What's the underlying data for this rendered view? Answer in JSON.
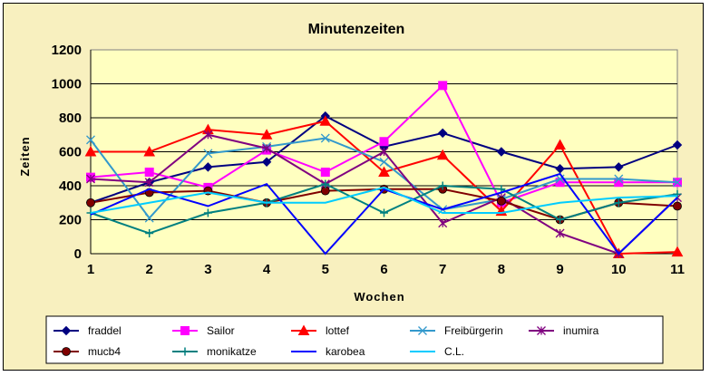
{
  "chart_data": {
    "type": "line",
    "title": "Minutenzeiten",
    "xlabel": "Wochen",
    "ylabel": "Zeiten",
    "categories": [
      "1",
      "2",
      "3",
      "4",
      "5",
      "6",
      "7",
      "8",
      "9",
      "10",
      "11"
    ],
    "ylim": [
      0,
      1200
    ],
    "yticks": [
      "0",
      "200",
      "400",
      "600",
      "800",
      "1000",
      "1200"
    ],
    "grid": "horizontal",
    "legend_position": "bottom",
    "plot_background": "#ffffc0",
    "series": [
      {
        "name": "fraddel",
        "color": "#000080",
        "marker": "diamond",
        "values": [
          300,
          420,
          510,
          540,
          810,
          630,
          710,
          600,
          500,
          510,
          640
        ]
      },
      {
        "name": "Sailor",
        "color": "#ff00ff",
        "marker": "square",
        "values": [
          450,
          480,
          390,
          610,
          480,
          660,
          990,
          300,
          420,
          420,
          420
        ]
      },
      {
        "name": "lottef",
        "color": "#ff0000",
        "marker": "triangle",
        "values": [
          600,
          600,
          730,
          700,
          780,
          480,
          580,
          250,
          640,
          0,
          10
        ]
      },
      {
        "name": "Freibürgerin",
        "color": "#3399cc",
        "marker": "x",
        "values": [
          670,
          210,
          590,
          630,
          680,
          540,
          260,
          320,
          440,
          440,
          420
        ]
      },
      {
        "name": "inumira",
        "color": "#800080",
        "marker": "star",
        "values": [
          440,
          420,
          700,
          620,
          410,
          600,
          180,
          330,
          120,
          0,
          330
        ]
      },
      {
        "name": "mucb4",
        "color": "#800000",
        "marker": "circle",
        "values": [
          300,
          360,
          370,
          300,
          370,
          380,
          380,
          310,
          200,
          300,
          280
        ]
      },
      {
        "name": "monikatze",
        "color": "#008080",
        "marker": "plus",
        "values": [
          240,
          120,
          240,
          300,
          410,
          240,
          400,
          380,
          200,
          300,
          350
        ]
      },
      {
        "name": "karobea",
        "color": "#0000ff",
        "marker": "none",
        "values": [
          230,
          380,
          280,
          410,
          0,
          380,
          260,
          360,
          470,
          0,
          330
        ]
      },
      {
        "name": "C.L.",
        "color": "#00ccff",
        "marker": "none",
        "values": [
          240,
          300,
          360,
          300,
          300,
          390,
          240,
          240,
          300,
          330,
          340
        ]
      }
    ]
  }
}
